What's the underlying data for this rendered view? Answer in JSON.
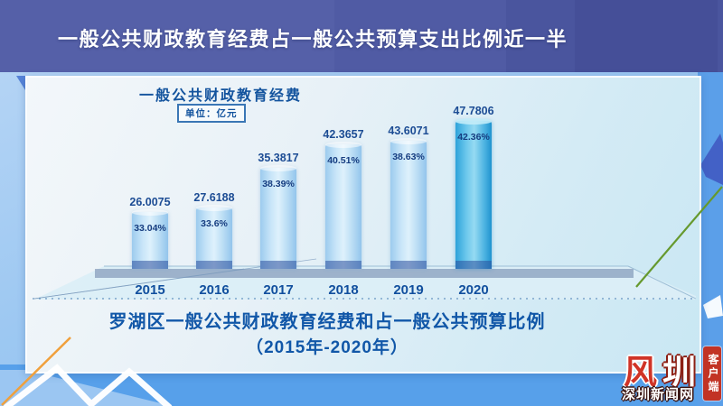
{
  "banner": {
    "title": "一般公共财政教育经费占一般公共预算支出比例近一半"
  },
  "panel": {
    "chart_title": "一般公共财政教育经费",
    "unit_label": "单位：亿元",
    "caption_line1": "罗湖区一般公共财政教育经费和占一般公共预算比例",
    "caption_line2": "（2015年-2020年）"
  },
  "chart_data": {
    "type": "bar",
    "title": "一般公共财政教育经费",
    "unit": "亿元",
    "categories": [
      "2015",
      "2016",
      "2017",
      "2018",
      "2019",
      "2020"
    ],
    "series": [
      {
        "name": "一般公共财政教育经费（亿元）",
        "values": [
          26.0075,
          27.6188,
          35.3817,
          42.3657,
          43.6071,
          47.7806
        ]
      },
      {
        "name": "占一般公共预算比例（%）",
        "values": [
          33.04,
          33.6,
          38.39,
          40.51,
          38.63,
          42.36
        ]
      }
    ],
    "value_labels": [
      "26.0075",
      "27.6188",
      "35.3817",
      "42.3657",
      "43.6071",
      "47.7806"
    ],
    "percent_labels": [
      "33.04%",
      "33.6%",
      "38.39%",
      "40.51%",
      "38.63%",
      "42.36%"
    ],
    "highlight_category": "2020",
    "legend_position": "none",
    "grid": false
  },
  "watermark": {
    "logo_text": "圳",
    "site_name": "深圳新闻网",
    "seal_text": "客户端"
  },
  "colors": {
    "banner_blue": "#5560a8",
    "bar_light": "#bcdcf4",
    "bar_accent": "#35a8dc",
    "label_navy": "#1c4c94",
    "caption_blue": "#1157a8",
    "bg_light_blue": "#9dc8f2",
    "bg_deep_blue": "#57a0ea",
    "logo_red": "#c8372a",
    "accent_green_line": "#66992e",
    "accent_orange_line": "#f0a03c"
  }
}
